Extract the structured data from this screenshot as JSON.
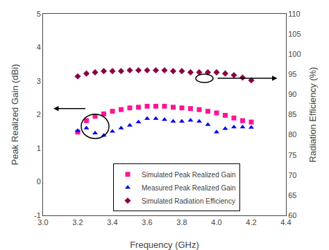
{
  "chart_data": {
    "type": "scatter",
    "xlabel": "Frequency (GHz)",
    "ylabel": "Peak Realized Gain (dBi)",
    "y2label": "Radiation Efficiency (%)",
    "series": [
      {
        "name": "Simulated Peak Realized Gain",
        "color": "#FF1493",
        "marker": "square",
        "axis": "y",
        "x": [
          3.2,
          3.25,
          3.3,
          3.35,
          3.4,
          3.45,
          3.5,
          3.55,
          3.6,
          3.65,
          3.7,
          3.75,
          3.8,
          3.85,
          3.9,
          3.95,
          4.0,
          4.05,
          4.1,
          4.15,
          4.2
        ],
        "values": [
          1.48,
          1.82,
          1.95,
          2.02,
          2.1,
          2.15,
          2.2,
          2.22,
          2.25,
          2.25,
          2.25,
          2.22,
          2.2,
          2.18,
          2.15,
          2.1,
          2.05,
          1.98,
          1.9,
          1.82,
          1.78
        ]
      },
      {
        "name": "Measured Peak Realized Gain",
        "color": "#0000EE",
        "marker": "triangle-up",
        "axis": "y",
        "x": [
          3.2,
          3.25,
          3.3,
          3.35,
          3.4,
          3.45,
          3.5,
          3.55,
          3.6,
          3.65,
          3.7,
          3.75,
          3.8,
          3.85,
          3.9,
          3.95,
          4.0,
          4.05,
          4.1,
          4.15,
          4.2
        ],
        "values": [
          1.52,
          1.6,
          1.45,
          1.38,
          1.5,
          1.6,
          1.68,
          1.78,
          1.88,
          1.88,
          1.85,
          1.8,
          1.8,
          1.83,
          1.8,
          1.7,
          1.48,
          1.58,
          1.63,
          1.63,
          1.62
        ]
      },
      {
        "name": "Simulated Radiation Efficiency",
        "color": "#8B0045",
        "marker": "diamond",
        "axis": "y2",
        "x": [
          3.2,
          3.25,
          3.3,
          3.35,
          3.4,
          3.45,
          3.5,
          3.55,
          3.6,
          3.65,
          3.7,
          3.75,
          3.8,
          3.85,
          3.9,
          3.95,
          4.0,
          4.05,
          4.1,
          4.15,
          4.2
        ],
        "values": [
          94.5,
          95.2,
          95.5,
          95.8,
          95.8,
          95.8,
          96.0,
          96.0,
          96.0,
          96.0,
          96.0,
          95.8,
          95.8,
          95.5,
          95.5,
          95.5,
          95.5,
          95.2,
          94.8,
          94.2,
          93.5
        ]
      }
    ],
    "xlim": [
      3.0,
      4.4
    ],
    "xticks": [
      {
        "value": 3.0,
        "label": "3.0"
      },
      3.2,
      3.4,
      3.6,
      3.8,
      {
        "value": 4.0,
        "label": "4.0"
      },
      4.2,
      4.4
    ],
    "ylim": [
      -1,
      5
    ],
    "yticks": [
      -1,
      0,
      1,
      2,
      3,
      4,
      5
    ],
    "y2lim": [
      60,
      110
    ],
    "y2ticks": [
      60,
      65,
      70,
      75,
      80,
      85,
      90,
      95,
      100,
      105,
      110
    ],
    "annotations": [
      {
        "shape": "ellipse",
        "x": 3.3,
        "y": 1.65,
        "width": 0.16,
        "height": 0.72
      },
      {
        "shape": "arrow",
        "x_from": 3.25,
        "x_to": 3.06,
        "y": 2.18
      },
      {
        "shape": "ellipse",
        "x": 3.93,
        "y": 3.08,
        "width": 0.1,
        "height": 0.25
      },
      {
        "shape": "arrow",
        "x_from": 4.0,
        "x_to": 4.35,
        "y": 3.08
      }
    ],
    "legend": "lower center",
    "grid": false
  }
}
